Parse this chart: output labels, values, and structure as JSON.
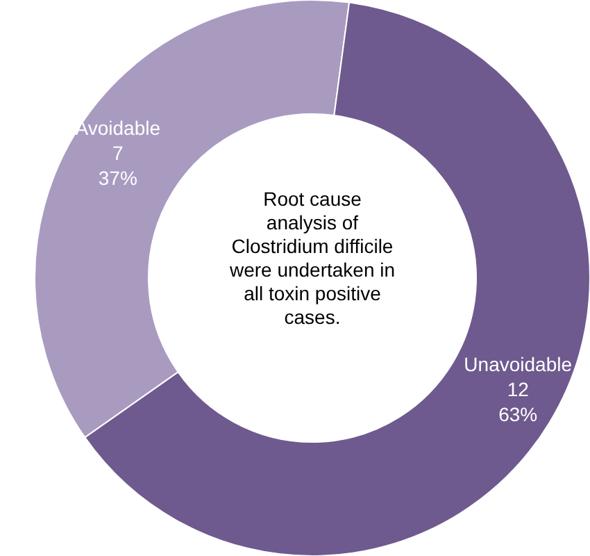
{
  "chart_data": {
    "type": "donut",
    "categories": [
      "Avoidable",
      "Unavoidable"
    ],
    "values": [
      7,
      12
    ],
    "colors": [
      "#a99bc0",
      "#6e5a8e"
    ],
    "value_labels": [
      "7\n37%",
      "12\n63%"
    ],
    "annotations": [
      "Root cause analysis of Clostridium difficile were undertaken in all toxin positive cases."
    ]
  }
}
